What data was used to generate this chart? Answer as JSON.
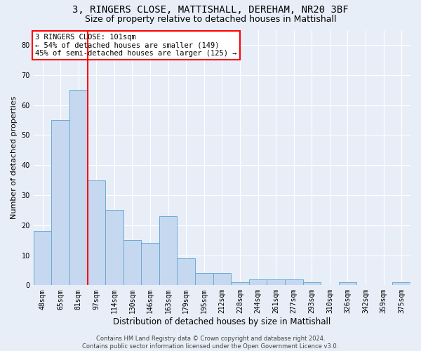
{
  "title1": "3, RINGERS CLOSE, MATTISHALL, DEREHAM, NR20 3BF",
  "title2": "Size of property relative to detached houses in Mattishall",
  "xlabel": "Distribution of detached houses by size in Mattishall",
  "ylabel": "Number of detached properties",
  "bar_labels": [
    "48sqm",
    "65sqm",
    "81sqm",
    "97sqm",
    "114sqm",
    "130sqm",
    "146sqm",
    "163sqm",
    "179sqm",
    "195sqm",
    "212sqm",
    "228sqm",
    "244sqm",
    "261sqm",
    "277sqm",
    "293sqm",
    "310sqm",
    "326sqm",
    "342sqm",
    "359sqm",
    "375sqm"
  ],
  "bar_values": [
    18,
    55,
    65,
    35,
    25,
    15,
    14,
    23,
    9,
    4,
    4,
    1,
    2,
    2,
    2,
    1,
    0,
    1,
    0,
    0,
    1
  ],
  "bar_color": "#c5d8f0",
  "bar_edgecolor": "#6aabd2",
  "vline_color": "red",
  "vline_x": 2.5,
  "annotation_text": "3 RINGERS CLOSE: 101sqm\n← 54% of detached houses are smaller (149)\n45% of semi-detached houses are larger (125) →",
  "annotation_box_color": "white",
  "annotation_box_edgecolor": "red",
  "ylim": [
    0,
    85
  ],
  "yticks": [
    0,
    10,
    20,
    30,
    40,
    50,
    60,
    70,
    80
  ],
  "bg_color": "#e8eef8",
  "grid_color": "white",
  "footer_text": "Contains HM Land Registry data © Crown copyright and database right 2024.\nContains public sector information licensed under the Open Government Licence v3.0.",
  "title1_fontsize": 10,
  "title2_fontsize": 9,
  "xlabel_fontsize": 8.5,
  "ylabel_fontsize": 8,
  "tick_fontsize": 7,
  "ann_fontsize": 7.5,
  "footer_fontsize": 6
}
